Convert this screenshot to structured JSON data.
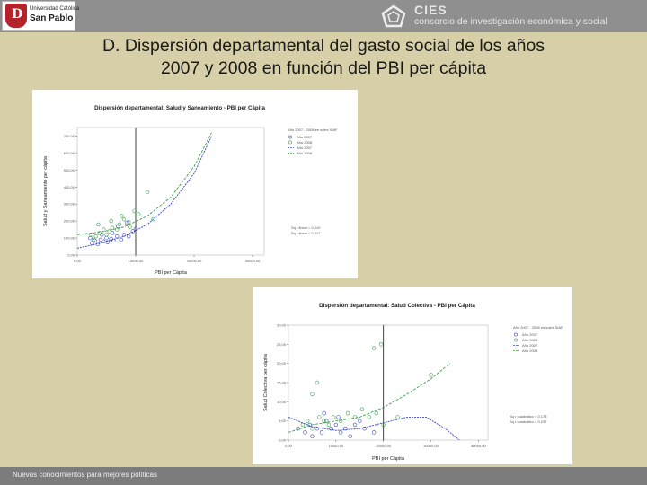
{
  "header": {
    "university_line1": "Universidad Católica",
    "university_line2": "San Pablo",
    "cies_name": "CIES",
    "cies_tagline": "consorcio de investigación económica y social"
  },
  "title": {
    "line1": "D. Dispersión departamental del gasto social de los años",
    "line2": "2007 y 2008 en función del PBI per cápita"
  },
  "footer": {
    "tagline": "Nuevos conocimientos para mejores políticas"
  },
  "colors": {
    "header_bg": "#8f8f8f",
    "slide_bg": "#d6cfa8",
    "footer_bg": "#7c7c7c",
    "series_2007": "#3a46c8",
    "series_2008": "#3aa14a"
  },
  "chart_data": [
    {
      "type": "scatter",
      "title": "Dispersión departamental: Salud y Saneamiento - PBI per Cápita",
      "xlabel": "PBI per Cápita",
      "ylabel": "Salud y Saneamiento per cápita",
      "x_ticks": [
        "0,00",
        "10000,00",
        "20000,00",
        "30000,00"
      ],
      "y_ticks": [
        "0,00",
        "100,00",
        "200,00",
        "300,00",
        "400,00",
        "500,00",
        "600,00",
        "700,00"
      ],
      "xlim": [
        0,
        32000
      ],
      "ylim": [
        0,
        750
      ],
      "vertical_reference_x": 10000,
      "legend_title": "Año 2007 - 2008 en soles SIAF",
      "legend": [
        "Año 2007",
        "Año 2008",
        "Año 2007",
        "Año 2008"
      ],
      "annotation": [
        "Sq r lineal = 0,310",
        "Sq r lineal = 0,317"
      ],
      "series": [
        {
          "name": "Año 2007",
          "points": [
            [
              2500,
              70
            ],
            [
              3000,
              85
            ],
            [
              3500,
              65
            ],
            [
              4000,
              90
            ],
            [
              4500,
              80
            ],
            [
              5000,
              100
            ],
            [
              5200,
              75
            ],
            [
              5800,
              95
            ],
            [
              6200,
              85
            ],
            [
              6800,
              110
            ],
            [
              7500,
              90
            ],
            [
              8000,
              120
            ],
            [
              8800,
              110
            ],
            [
              9500,
              140
            ],
            [
              10000,
              155
            ],
            [
              2200,
              100
            ],
            [
              4200,
              120
            ],
            [
              6000,
              130
            ],
            [
              7000,
              170
            ],
            [
              8500,
              190
            ]
          ],
          "fit": [
            [
              0,
              40
            ],
            [
              4000,
              70
            ],
            [
              8000,
              110
            ],
            [
              12000,
              180
            ],
            [
              16000,
              300
            ],
            [
              20000,
              480
            ],
            [
              23000,
              700
            ]
          ]
        },
        {
          "name": "Año 2008",
          "points": [
            [
              2800,
              90
            ],
            [
              3200,
              110
            ],
            [
              3800,
              130
            ],
            [
              4500,
              150
            ],
            [
              5000,
              120
            ],
            [
              5500,
              140
            ],
            [
              6000,
              160
            ],
            [
              6800,
              150
            ],
            [
              7200,
              180
            ],
            [
              8000,
              210
            ],
            [
              9000,
              165
            ],
            [
              9800,
              260
            ],
            [
              12000,
              370
            ],
            [
              13000,
              210
            ],
            [
              2400,
              120
            ],
            [
              3600,
              180
            ],
            [
              5800,
              200
            ],
            [
              7600,
              230
            ],
            [
              8800,
              195
            ],
            [
              10500,
              240
            ]
          ],
          "fit": [
            [
              0,
              120
            ],
            [
              4000,
              135
            ],
            [
              8000,
              165
            ],
            [
              12000,
              230
            ],
            [
              16000,
              340
            ],
            [
              20000,
              520
            ],
            [
              23000,
              720
            ]
          ]
        }
      ]
    },
    {
      "type": "scatter",
      "title": "Dispersión departamental: Salud Colectiva - PBI per Cápita",
      "xlabel": "PBI per Cápita",
      "ylabel": "Salud Colectiva per cápita",
      "x_ticks": [
        "0,00",
        "10000,00",
        "20000,00",
        "30000,00",
        "40000,00"
      ],
      "y_ticks": [
        "0,00",
        "5,00",
        "10,00",
        "15,00",
        "20,00",
        "25,00",
        "30,00"
      ],
      "xlim": [
        0,
        42000
      ],
      "ylim": [
        0,
        30
      ],
      "vertical_reference_x": 20000,
      "legend_title": "Año 2007 - 2008 en soles SIAF",
      "legend": [
        "Año 2007",
        "Año 2008",
        "Año 2007",
        "Año 2008"
      ],
      "annotation": [
        "Sq r cuadrático = 0,175",
        "Sq r cuadrático = 0,237"
      ],
      "series": [
        {
          "name": "Año 2007",
          "points": [
            [
              2000,
              3
            ],
            [
              3500,
              2
            ],
            [
              4500,
              4
            ],
            [
              5000,
              1
            ],
            [
              6000,
              3
            ],
            [
              7000,
              2
            ],
            [
              8000,
              5
            ],
            [
              9000,
              3
            ],
            [
              10000,
              4
            ],
            [
              11000,
              2
            ],
            [
              12000,
              3
            ],
            [
              13000,
              1
            ],
            [
              14000,
              4
            ],
            [
              16000,
              3
            ],
            [
              18000,
              2
            ],
            [
              7500,
              7
            ],
            [
              10500,
              6
            ],
            [
              15000,
              5
            ]
          ],
          "fit": [
            [
              0,
              6
            ],
            [
              5000,
              3.5
            ],
            [
              10000,
              2.5
            ],
            [
              15000,
              3
            ],
            [
              20000,
              4.5
            ],
            [
              25000,
              6
            ],
            [
              29000,
              6
            ],
            [
              33000,
              3
            ],
            [
              36000,
              0
            ]
          ]
        },
        {
          "name": "Año 2008",
          "points": [
            [
              3000,
              4
            ],
            [
              4000,
              5
            ],
            [
              5000,
              3
            ],
            [
              6500,
              6
            ],
            [
              7500,
              5
            ],
            [
              8500,
              4
            ],
            [
              9500,
              6
            ],
            [
              11000,
              5
            ],
            [
              12500,
              7
            ],
            [
              14000,
              6
            ],
            [
              15500,
              8
            ],
            [
              17000,
              6
            ],
            [
              18500,
              7
            ],
            [
              19500,
              25
            ],
            [
              18000,
              24
            ],
            [
              30000,
              17
            ],
            [
              20000,
              4
            ],
            [
              6000,
              15
            ],
            [
              5000,
              12
            ],
            [
              23000,
              6
            ]
          ],
          "fit": [
            [
              0,
              2
            ],
            [
              5000,
              4
            ],
            [
              10000,
              5
            ],
            [
              15000,
              6
            ],
            [
              20000,
              8.5
            ],
            [
              25000,
              12
            ],
            [
              30000,
              16
            ],
            [
              34000,
              20
            ]
          ]
        }
      ]
    }
  ]
}
